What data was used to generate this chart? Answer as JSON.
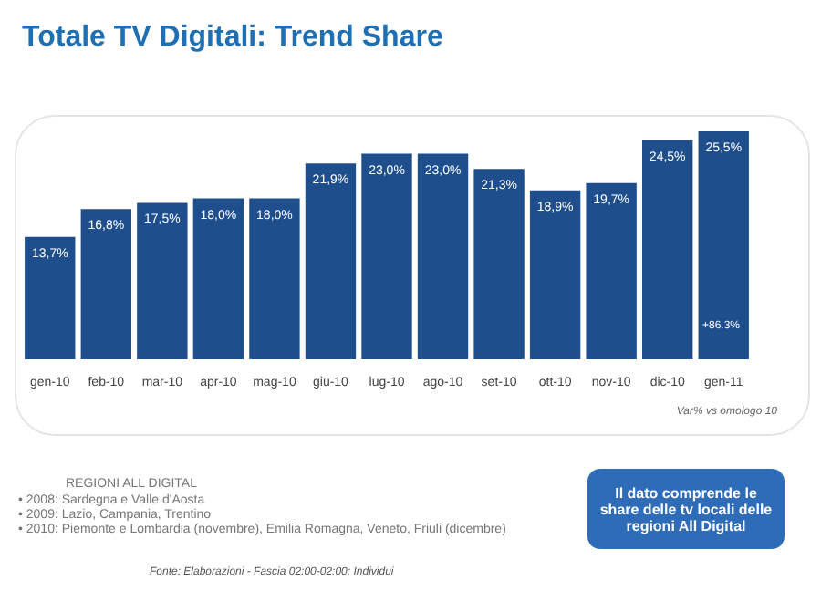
{
  "chart_data": {
    "type": "bar",
    "title": "Totale TV Digitali: Trend Share",
    "categories": [
      "gen-10",
      "feb-10",
      "mar-10",
      "apr-10",
      "mag-10",
      "giu-10",
      "lug-10",
      "ago-10",
      "set-10",
      "ott-10",
      "nov-10",
      "dic-10",
      "gen-11"
    ],
    "values": [
      13.7,
      16.8,
      17.5,
      18.0,
      18.0,
      21.9,
      23.0,
      23.0,
      21.3,
      18.9,
      19.7,
      24.5,
      25.5
    ],
    "value_labels": [
      "13,7%",
      "16,8%",
      "17,5%",
      "18,0%",
      "18,0%",
      "21,9%",
      "23,0%",
      "23,0%",
      "21,3%",
      "18,9%",
      "19,7%",
      "24,5%",
      "25,5%"
    ],
    "color": "#1f4e8c",
    "tick_labels": "x",
    "grid": false,
    "annotations": [
      "+86.3%",
      "Var% vs omologo 10",
      "REGIONI ALL DIGITAL",
      "• 2008: Sardegna e Valle d'Aosta",
      "• 2009: Lazio, Campania, Trentino",
      "• 2010: Piemonte e Lombardia (novembre), Emilia Romagna, Veneto, Friuli (dicembre)",
      "Il dato comprende le share delle tv locali delle regioni All Digital",
      "Fonte: Elaborazioni - Fascia 02:00-02:00; Individui"
    ]
  }
}
